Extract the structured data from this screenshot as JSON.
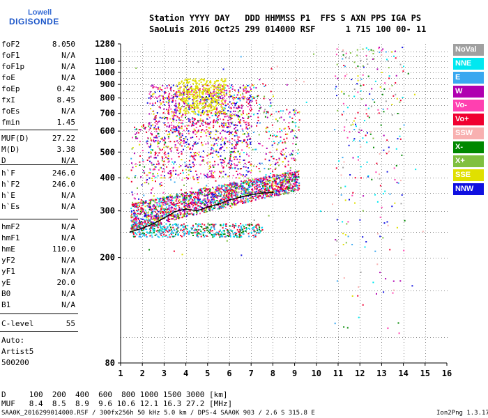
{
  "logo": {
    "line1": "Lowell",
    "line2": "DIGISONDE"
  },
  "header": {
    "labels": "Station YYYY DAY   DDD HHMMSS P1  FFS S AXN PPS IGA PS",
    "values": "SaoLuis 2016 Oct25 299 014000 RSF      1 715 100 00- 11"
  },
  "params_a": [
    {
      "name": "foF2",
      "value": "8.050"
    },
    {
      "name": "foF1",
      "value": "N/A"
    },
    {
      "name": "foF1p",
      "value": "N/A"
    },
    {
      "name": "foE",
      "value": "N/A"
    },
    {
      "name": "foEp",
      "value": "0.42"
    },
    {
      "name": "fxI",
      "value": "8.45"
    },
    {
      "name": "foEs",
      "value": "N/A"
    },
    {
      "name": "fmin",
      "value": "1.45"
    }
  ],
  "params_b": [
    {
      "name": "MUF(D)",
      "value": "27.22"
    },
    {
      "name": "M(D)",
      "value": "3.38"
    },
    {
      "name": "D",
      "value": "N/A"
    }
  ],
  "params_c": [
    {
      "name": "h`F",
      "value": "246.0"
    },
    {
      "name": "h`F2",
      "value": "246.0"
    },
    {
      "name": "h`E",
      "value": "N/A"
    },
    {
      "name": "h`Es",
      "value": "N/A"
    }
  ],
  "params_d": [
    {
      "name": "hmF2",
      "value": "N/A"
    },
    {
      "name": "hmF1",
      "value": "N/A"
    },
    {
      "name": "hmE",
      "value": "110.0"
    },
    {
      "name": "yF2",
      "value": "N/A"
    },
    {
      "name": "yF1",
      "value": "N/A"
    },
    {
      "name": "yE",
      "value": "20.0"
    },
    {
      "name": "B0",
      "value": "N/A"
    },
    {
      "name": "B1",
      "value": "N/A"
    }
  ],
  "clevel": {
    "name": "C-level",
    "value": "55"
  },
  "autoscale": {
    "line1": "Auto:",
    "line2": "Artist5",
    "line3": "500200"
  },
  "legend": [
    {
      "label": "NoVal",
      "color": "#a0a0a0"
    },
    {
      "label": "NNE",
      "color": "#00e8f0"
    },
    {
      "label": "E",
      "color": "#3aa8f0"
    },
    {
      "label": "W",
      "color": "#b000b0"
    },
    {
      "label": "Vo-",
      "color": "#ff40b0"
    },
    {
      "label": "Vo+",
      "color": "#f00030"
    },
    {
      "label": "SSW",
      "color": "#f8b0b0"
    },
    {
      "label": "X-",
      "color": "#008800"
    },
    {
      "label": "X+",
      "color": "#80c040"
    },
    {
      "label": "SSE",
      "color": "#e0e000"
    },
    {
      "label": "NNW",
      "color": "#1010e0"
    }
  ],
  "chart_data": {
    "type": "scatter",
    "title": "",
    "xlabel": "",
    "ylabel": "",
    "xlim": [
      1,
      16
    ],
    "ylim": [
      80,
      1280
    ],
    "y_scale": "log",
    "x_ticks": [
      1,
      2,
      3,
      4,
      5,
      6,
      7,
      8,
      9,
      10,
      11,
      12,
      13,
      14,
      15,
      16
    ],
    "y_ticks": [
      80,
      200,
      300,
      400,
      500,
      600,
      700,
      800,
      900,
      1000,
      1100,
      1280
    ],
    "grid": true,
    "trace": {
      "name": "",
      "color": "#000000",
      "points": [
        [
          1.45,
          250
        ],
        [
          2,
          258
        ],
        [
          2.5,
          268
        ],
        [
          3,
          282
        ],
        [
          3.5,
          298
        ],
        [
          4,
          305
        ],
        [
          4.5,
          300
        ],
        [
          5,
          310
        ],
        [
          5.5,
          318
        ],
        [
          6,
          330
        ],
        [
          6.5,
          338
        ],
        [
          7,
          345
        ],
        [
          7.5,
          350
        ],
        [
          8,
          352
        ]
      ]
    }
  },
  "footer": {
    "d_row": "D     100  200  400  600  800 1000 1500 3000 [km]",
    "muf_row": "MUF   8.4  8.5  8.9  9.6 10.6 12.1 16.3 27.2 [MHz]",
    "status": "SAA0K_2016299014000.RSF / 300fx256h 50 kHz 5.0 km / DPS-4 SAA0K 903 / 2.6 S 315.8 E",
    "version": "Ion2Png 1.3.17"
  }
}
